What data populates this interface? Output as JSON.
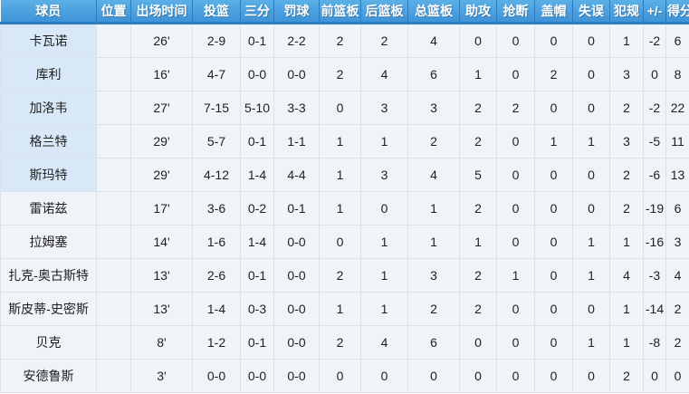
{
  "table": {
    "columns": [
      {
        "key": "player",
        "label": "球员"
      },
      {
        "key": "position",
        "label": "位置"
      },
      {
        "key": "minutes",
        "label": "出场时间"
      },
      {
        "key": "fg",
        "label": "投篮"
      },
      {
        "key": "three",
        "label": "三分"
      },
      {
        "key": "ft",
        "label": "罚球"
      },
      {
        "key": "oreb",
        "label": "前篮板"
      },
      {
        "key": "dreb",
        "label": "后篮板"
      },
      {
        "key": "treb",
        "label": "总篮板"
      },
      {
        "key": "ast",
        "label": "助攻"
      },
      {
        "key": "stl",
        "label": "抢断"
      },
      {
        "key": "blk",
        "label": "盖帽"
      },
      {
        "key": "to",
        "label": "失误"
      },
      {
        "key": "pf",
        "label": "犯规"
      },
      {
        "key": "pm",
        "label": "+/-"
      },
      {
        "key": "pts",
        "label": "得分"
      }
    ],
    "rows": [
      {
        "starter": true,
        "player": "卡瓦诺",
        "position": "",
        "minutes": "26'",
        "fg": "2-9",
        "three": "0-1",
        "ft": "2-2",
        "oreb": "2",
        "dreb": "2",
        "treb": "4",
        "ast": "0",
        "stl": "0",
        "blk": "0",
        "to": "0",
        "pf": "1",
        "pm": "-2",
        "pts": "6"
      },
      {
        "starter": true,
        "player": "库利",
        "position": "",
        "minutes": "16'",
        "fg": "4-7",
        "three": "0-0",
        "ft": "0-0",
        "oreb": "2",
        "dreb": "4",
        "treb": "6",
        "ast": "1",
        "stl": "0",
        "blk": "2",
        "to": "0",
        "pf": "3",
        "pm": "0",
        "pts": "8"
      },
      {
        "starter": true,
        "player": "加洛韦",
        "position": "",
        "minutes": "27'",
        "fg": "7-15",
        "three": "5-10",
        "ft": "3-3",
        "oreb": "0",
        "dreb": "3",
        "treb": "3",
        "ast": "2",
        "stl": "2",
        "blk": "0",
        "to": "0",
        "pf": "2",
        "pm": "-2",
        "pts": "22"
      },
      {
        "starter": true,
        "player": "格兰特",
        "position": "",
        "minutes": "29'",
        "fg": "5-7",
        "three": "0-1",
        "ft": "1-1",
        "oreb": "1",
        "dreb": "1",
        "treb": "2",
        "ast": "2",
        "stl": "0",
        "blk": "1",
        "to": "1",
        "pf": "3",
        "pm": "-5",
        "pts": "11"
      },
      {
        "starter": true,
        "player": "斯玛特",
        "position": "",
        "minutes": "29'",
        "fg": "4-12",
        "three": "1-4",
        "ft": "4-4",
        "oreb": "1",
        "dreb": "3",
        "treb": "4",
        "ast": "5",
        "stl": "0",
        "blk": "0",
        "to": "0",
        "pf": "2",
        "pm": "-6",
        "pts": "13"
      },
      {
        "starter": false,
        "player": "雷诺兹",
        "position": "",
        "minutes": "17'",
        "fg": "3-6",
        "three": "0-2",
        "ft": "0-1",
        "oreb": "1",
        "dreb": "0",
        "treb": "1",
        "ast": "2",
        "stl": "0",
        "blk": "0",
        "to": "0",
        "pf": "2",
        "pm": "-19",
        "pts": "6"
      },
      {
        "starter": false,
        "player": "拉姆塞",
        "position": "",
        "minutes": "14'",
        "fg": "1-6",
        "three": "1-4",
        "ft": "0-0",
        "oreb": "0",
        "dreb": "1",
        "treb": "1",
        "ast": "1",
        "stl": "0",
        "blk": "0",
        "to": "1",
        "pf": "1",
        "pm": "-16",
        "pts": "3"
      },
      {
        "starter": false,
        "player": "扎克-奥古斯特",
        "position": "",
        "minutes": "13'",
        "fg": "2-6",
        "three": "0-1",
        "ft": "0-0",
        "oreb": "2",
        "dreb": "1",
        "treb": "3",
        "ast": "2",
        "stl": "1",
        "blk": "0",
        "to": "1",
        "pf": "4",
        "pm": "-3",
        "pts": "4"
      },
      {
        "starter": false,
        "player": "斯皮蒂-史密斯",
        "position": "",
        "minutes": "13'",
        "fg": "1-4",
        "three": "0-3",
        "ft": "0-0",
        "oreb": "1",
        "dreb": "1",
        "treb": "2",
        "ast": "2",
        "stl": "0",
        "blk": "0",
        "to": "0",
        "pf": "1",
        "pm": "-14",
        "pts": "2"
      },
      {
        "starter": false,
        "player": "贝克",
        "position": "",
        "minutes": "8'",
        "fg": "1-2",
        "three": "0-1",
        "ft": "0-0",
        "oreb": "2",
        "dreb": "4",
        "treb": "6",
        "ast": "0",
        "stl": "0",
        "blk": "0",
        "to": "1",
        "pf": "1",
        "pm": "-8",
        "pts": "2"
      },
      {
        "starter": false,
        "player": "安德鲁斯",
        "position": "",
        "minutes": "3'",
        "fg": "0-0",
        "three": "0-0",
        "ft": "0-0",
        "oreb": "0",
        "dreb": "0",
        "treb": "0",
        "ast": "0",
        "stl": "0",
        "blk": "0",
        "to": "0",
        "pf": "2",
        "pm": "0",
        "pts": "0"
      }
    ]
  },
  "colors": {
    "header_gradient_top": "#5bb0e7",
    "header_gradient_bottom": "#3f93d7",
    "header_separator": "#2a7dc0",
    "header_text": "#ffffff",
    "cell_background": "#f0f4f9",
    "starter_name_background": "#d8e8f8",
    "grid_line": "#d9e1ea",
    "cell_text": "#1f1f1f"
  }
}
